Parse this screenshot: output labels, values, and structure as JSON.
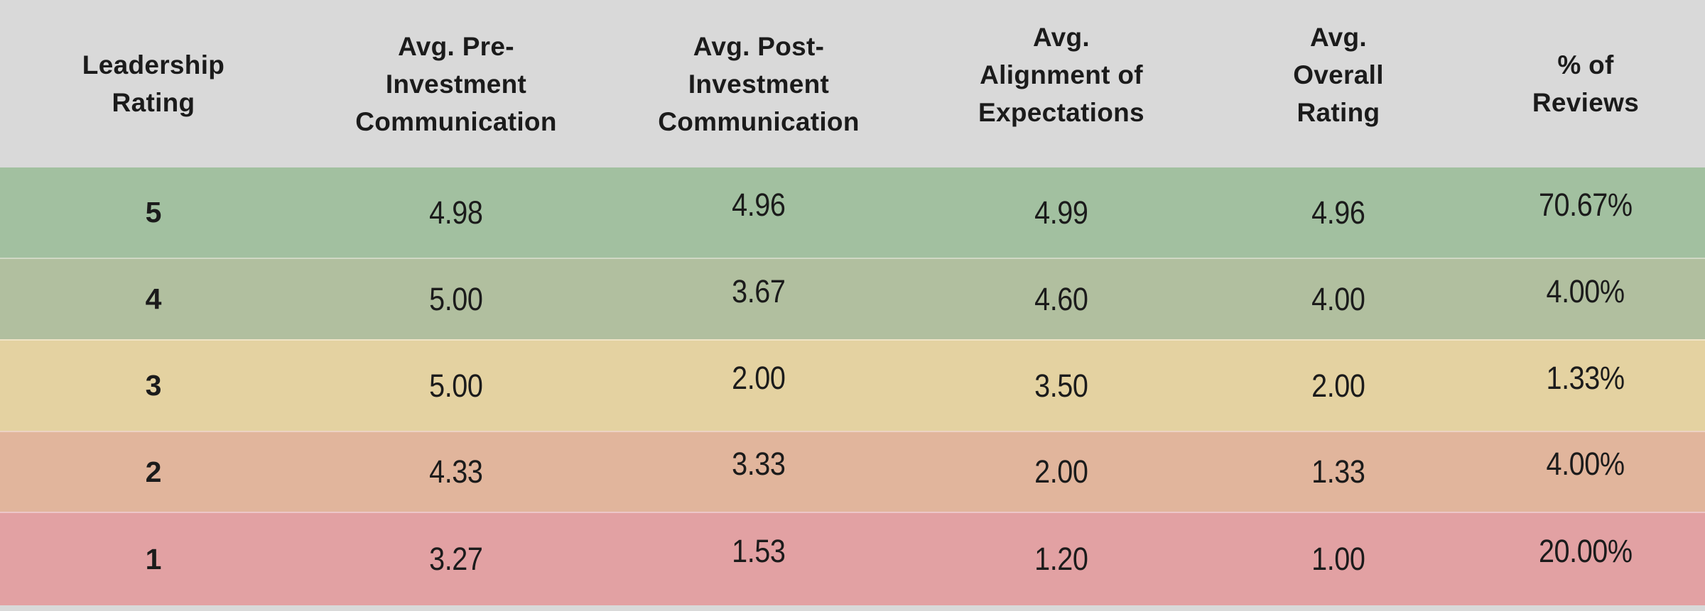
{
  "chart_data": {
    "type": "table",
    "columns": [
      "Leadership\nRating",
      "Avg. Pre-\nInvestment\nCommunication",
      "Avg. Post-\nInvestment\nCommunication",
      "Avg.\nAlignment of\nExpectations",
      "Avg.\nOverall\nRating",
      "% of\nReviews"
    ],
    "rows": [
      {
        "cells": [
          "5",
          "4.98",
          "4.96",
          "4.99",
          "4.96",
          "70.67%"
        ],
        "color": "#a2c0a0"
      },
      {
        "cells": [
          "4",
          "5.00",
          "3.67",
          "4.60",
          "4.00",
          "4.00%"
        ],
        "color": "#b1bf9f"
      },
      {
        "cells": [
          "3",
          "5.00",
          "2.00",
          "3.50",
          "2.00",
          "1.33%"
        ],
        "color": "#e4d2a1"
      },
      {
        "cells": [
          "2",
          "4.33",
          "3.33",
          "2.00",
          "1.33",
          "4.00%"
        ],
        "color": "#e1b59c"
      },
      {
        "cells": [
          "1",
          "3.27",
          "1.53",
          "1.20",
          "1.00",
          "20.00%"
        ],
        "color": "#e2a1a3"
      }
    ],
    "legend": "row color encodes leadership rating: green (high) to red (low)",
    "colors": {
      "header_bg": "#d9d9d9",
      "text": "#1b1b1b",
      "rating_5_row": "#a2c0a0",
      "rating_4_row": "#b1bf9f",
      "rating_3_row": "#e4d2a1",
      "rating_2_row": "#e1b59c",
      "rating_1_row": "#e2a1a3"
    }
  }
}
